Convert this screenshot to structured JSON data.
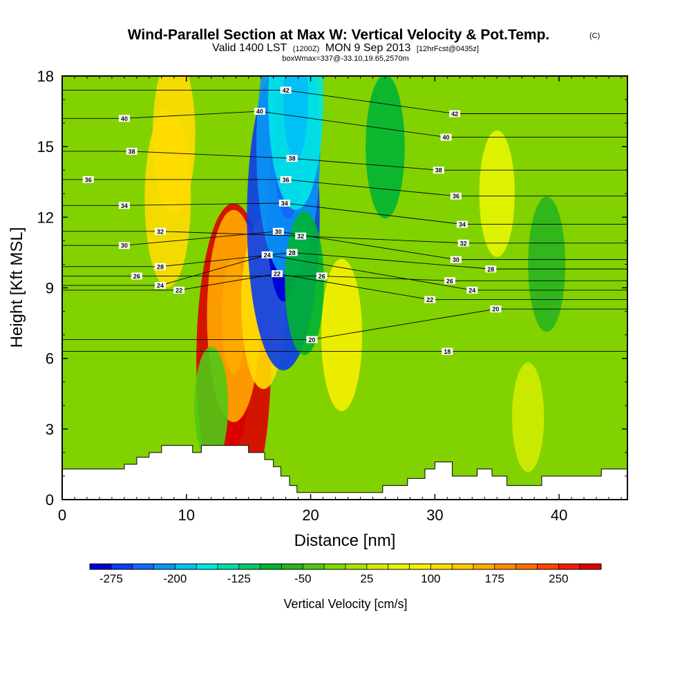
{
  "chart_data": {
    "type": "heatmap",
    "title": "Wind-Parallel Section at Max W: Vertical Velocity & Pot.Temp.",
    "title_mark": "(C)",
    "subtitle_parts": {
      "valid": "Valid 1400 LST",
      "utc": "(1200Z)",
      "date": "MON 9 Sep 2013",
      "forecast": "[12hrFcst@0435z]"
    },
    "box_info": "boxWmax=337@-33.10,19.65,2570m",
    "xlabel": "Distance [nm]",
    "ylabel": "Height [Kft MSL]",
    "xlim": [
      0,
      45.5
    ],
    "ylim": [
      0,
      18
    ],
    "x_ticks": [
      0,
      10,
      20,
      30,
      40
    ],
    "y_ticks": [
      0,
      3,
      6,
      9,
      12,
      15,
      18
    ],
    "colorbar": {
      "title": "Vertical Velocity [cm/s]",
      "min": -300,
      "max": 300,
      "step": 25,
      "tick_labels": [
        "-275",
        "-200",
        "-125",
        "-50",
        "25",
        "100",
        "175",
        "250"
      ],
      "tick_values": [
        -275,
        -200,
        -125,
        -50,
        25,
        100,
        175,
        250
      ],
      "colors": [
        "#0000d8",
        "#0a3cf0",
        "#1468f5",
        "#0a96f5",
        "#00c0f5",
        "#00e6e6",
        "#00dcaa",
        "#00c86e",
        "#00b432",
        "#28b41e",
        "#50c814",
        "#82d700",
        "#aae100",
        "#d2eb00",
        "#e6f500",
        "#f5f000",
        "#ffdc00",
        "#ffc800",
        "#ffaa00",
        "#ff8c00",
        "#ff6e00",
        "#ff4600",
        "#f01e00",
        "#dc0000"
      ]
    },
    "velocity_features": [
      {
        "x": 13.8,
        "y": 5.9,
        "value": 280
      },
      {
        "x": 13.8,
        "y": 7.8,
        "value": 160
      },
      {
        "x": 16.2,
        "y": 8.3,
        "value": 110
      },
      {
        "x": 8.5,
        "y": 12.8,
        "value": 120
      },
      {
        "x": 9.0,
        "y": 15.5,
        "value": 100
      },
      {
        "x": 17.8,
        "y": 12.0,
        "value": -270
      },
      {
        "x": 18.2,
        "y": 15.0,
        "value": -220
      },
      {
        "x": 18.8,
        "y": 17.0,
        "value": -170
      },
      {
        "x": 19.5,
        "y": 9.2,
        "value": -80
      },
      {
        "x": 22.5,
        "y": 7.0,
        "value": 90
      },
      {
        "x": 26.0,
        "y": 15.0,
        "value": -80
      },
      {
        "x": 39.0,
        "y": 10.0,
        "value": -70
      },
      {
        "x": 35.0,
        "y": 13.0,
        "value": 60
      },
      {
        "x": 37.5,
        "y": 3.5,
        "value": 40
      },
      {
        "x": 12.0,
        "y": 4.0,
        "value": -50
      }
    ],
    "theta_contour_labels": [
      {
        "text": "42",
        "x": 18.0,
        "y": 17.4
      },
      {
        "text": "42",
        "x": 31.6,
        "y": 16.4
      },
      {
        "text": "40",
        "x": 5.0,
        "y": 16.2
      },
      {
        "text": "40",
        "x": 15.9,
        "y": 16.5
      },
      {
        "text": "40",
        "x": 30.9,
        "y": 15.4
      },
      {
        "text": "38",
        "x": 5.6,
        "y": 14.8
      },
      {
        "text": "38",
        "x": 18.5,
        "y": 14.5
      },
      {
        "text": "38",
        "x": 30.3,
        "y": 14.0
      },
      {
        "text": "36",
        "x": 2.1,
        "y": 13.6
      },
      {
        "text": "36",
        "x": 18.0,
        "y": 13.6
      },
      {
        "text": "36",
        "x": 31.7,
        "y": 12.9
      },
      {
        "text": "34",
        "x": 5.0,
        "y": 12.5
      },
      {
        "text": "34",
        "x": 17.9,
        "y": 12.6
      },
      {
        "text": "34",
        "x": 32.2,
        "y": 11.7
      },
      {
        "text": "32",
        "x": 7.9,
        "y": 11.4
      },
      {
        "text": "32",
        "x": 19.2,
        "y": 11.2
      },
      {
        "text": "32",
        "x": 32.3,
        "y": 10.9
      },
      {
        "text": "30",
        "x": 5.0,
        "y": 10.8
      },
      {
        "text": "30",
        "x": 17.4,
        "y": 11.4
      },
      {
        "text": "30",
        "x": 31.7,
        "y": 10.2
      },
      {
        "text": "28",
        "x": 7.9,
        "y": 9.9
      },
      {
        "text": "28",
        "x": 18.5,
        "y": 10.5
      },
      {
        "text": "28",
        "x": 34.5,
        "y": 9.8
      },
      {
        "text": "26",
        "x": 6.0,
        "y": 9.5
      },
      {
        "text": "26",
        "x": 20.9,
        "y": 9.5
      },
      {
        "text": "26",
        "x": 31.2,
        "y": 9.3
      },
      {
        "text": "24",
        "x": 7.9,
        "y": 9.1
      },
      {
        "text": "24",
        "x": 16.5,
        "y": 10.4
      },
      {
        "text": "24",
        "x": 33.0,
        "y": 8.9
      },
      {
        "text": "22",
        "x": 9.4,
        "y": 8.9
      },
      {
        "text": "22",
        "x": 17.3,
        "y": 9.6
      },
      {
        "text": "22",
        "x": 29.6,
        "y": 8.5
      },
      {
        "text": "20",
        "x": 20.1,
        "y": 6.8
      },
      {
        "text": "20",
        "x": 34.9,
        "y": 8.1
      },
      {
        "text": "18",
        "x": 31.0,
        "y": 6.3
      }
    ],
    "terrain": [
      [
        0,
        1.3
      ],
      [
        5,
        1.3
      ],
      [
        5,
        1.5
      ],
      [
        6,
        1.5
      ],
      [
        6,
        1.8
      ],
      [
        7,
        1.8
      ],
      [
        7,
        2.0
      ],
      [
        8,
        2.0
      ],
      [
        8,
        2.3
      ],
      [
        10.5,
        2.3
      ],
      [
        10.5,
        2.0
      ],
      [
        11.2,
        2.0
      ],
      [
        11.2,
        2.3
      ],
      [
        15,
        2.3
      ],
      [
        15,
        2.0
      ],
      [
        16.3,
        2.0
      ],
      [
        16.3,
        1.7
      ],
      [
        17,
        1.7
      ],
      [
        17,
        1.4
      ],
      [
        17.6,
        1.4
      ],
      [
        17.6,
        1.0
      ],
      [
        18.3,
        1.0
      ],
      [
        18.3,
        0.6
      ],
      [
        18.9,
        0.6
      ],
      [
        18.9,
        0.3
      ],
      [
        25.8,
        0.3
      ],
      [
        25.8,
        0.6
      ],
      [
        27.8,
        0.6
      ],
      [
        27.8,
        0.9
      ],
      [
        29.2,
        0.9
      ],
      [
        29.2,
        1.3
      ],
      [
        30,
        1.3
      ],
      [
        30,
        1.6
      ],
      [
        31.4,
        1.6
      ],
      [
        31.4,
        1.0
      ],
      [
        33.4,
        1.0
      ],
      [
        33.4,
        1.3
      ],
      [
        34.6,
        1.3
      ],
      [
        34.6,
        1.0
      ],
      [
        35.8,
        1.0
      ],
      [
        35.8,
        0.6
      ],
      [
        38.6,
        0.6
      ],
      [
        38.6,
        1.0
      ],
      [
        43.4,
        1.0
      ],
      [
        43.4,
        1.3
      ],
      [
        45.5,
        1.3
      ]
    ]
  }
}
